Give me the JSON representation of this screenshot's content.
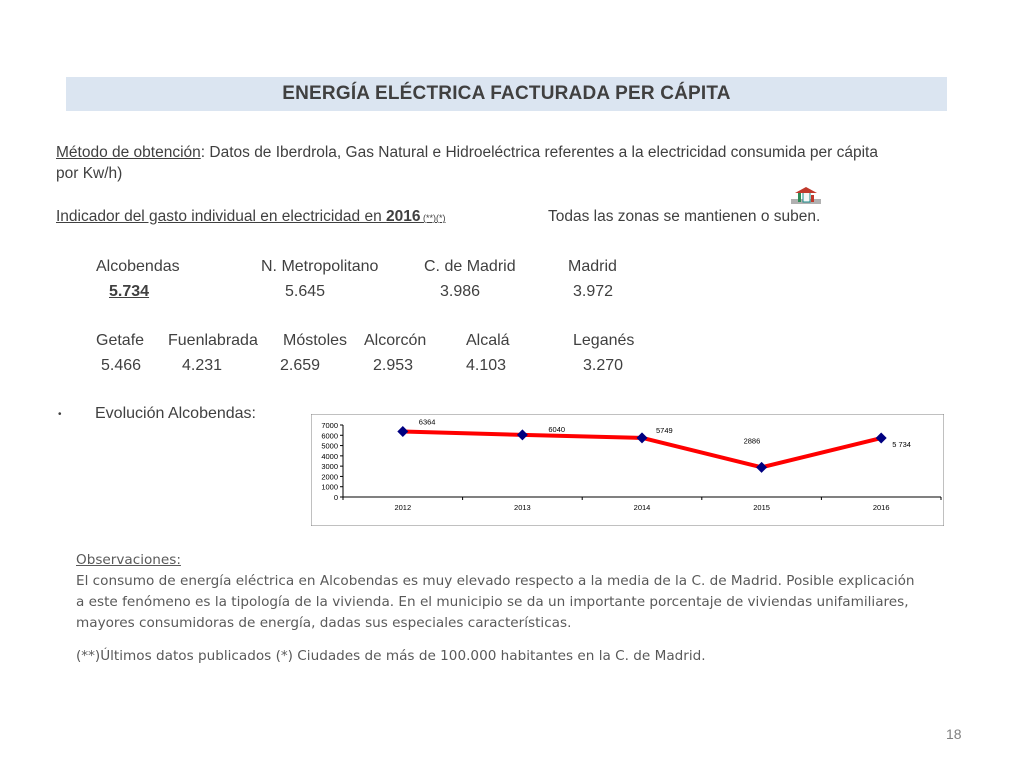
{
  "title": "ENERGÍA ELÉCTRICA FACTURADA PER CÁPITA",
  "method": {
    "label": "Método de obtención",
    "text_line1": ":  Datos de Iberdrola, Gas Natural e Hidroeléctrica referentes a la electricidad consumida per cápita",
    "text_line2": "por Kw/h)"
  },
  "indicator": {
    "text": "Indicador del gasto individual en electricidad en ",
    "year": "2016",
    "notes": " (**)(*)",
    "status": "Todas las zonas se mantienen o suben."
  },
  "zones_row1": {
    "names": [
      "Alcobendas",
      "N. Metropolitano",
      "C. de Madrid",
      "Madrid"
    ],
    "values": [
      "5.734",
      "5.645",
      "3.986",
      "3.972"
    ]
  },
  "zones_row2": {
    "names": [
      "Getafe",
      "Fuenlabrada",
      "Móstoles",
      "Alcorcón",
      "Alcalá",
      "Leganés"
    ],
    "values": [
      "5.466",
      "4.231",
      "2.659",
      "2.953",
      "4.103",
      "3.270"
    ]
  },
  "evolution": {
    "bullet": "•",
    "label": "Evolución Alcobendas:"
  },
  "chart_data": {
    "type": "line",
    "categories": [
      "2012",
      "2013",
      "2014",
      "2015",
      "2016"
    ],
    "series": [
      {
        "values": [
          6364,
          6040,
          5749,
          2886,
          5734
        ]
      }
    ],
    "data_labels": [
      "6364",
      "6040",
      "5749",
      "2886",
      "5 734"
    ],
    "yticks": [
      "0",
      "1000",
      "2000",
      "3000",
      "4000",
      "5000",
      "6000",
      "7000"
    ],
    "ylim": [
      0,
      7000
    ],
    "grid": false,
    "line_color": "#ff0000",
    "marker_color": "#000080"
  },
  "observations": {
    "heading": "Observaciones:",
    "lines": [
      "El consumo de energía eléctrica en Alcobendas es muy elevado respecto a la media de la C. de Madrid. Posible explicación",
      "a este fenómeno es la tipología de la vivienda. En el municipio se da un importante porcentaje de viviendas unifamiliares,",
      "mayores consumidoras de energía, dadas sus especiales características."
    ],
    "footnote": "(**)Últimos datos publicados (*) Ciudades de más de 100.000 habitantes en la C. de Madrid."
  },
  "page_number": "18",
  "icons": {
    "trend": "trend-up-arrow-icon"
  }
}
